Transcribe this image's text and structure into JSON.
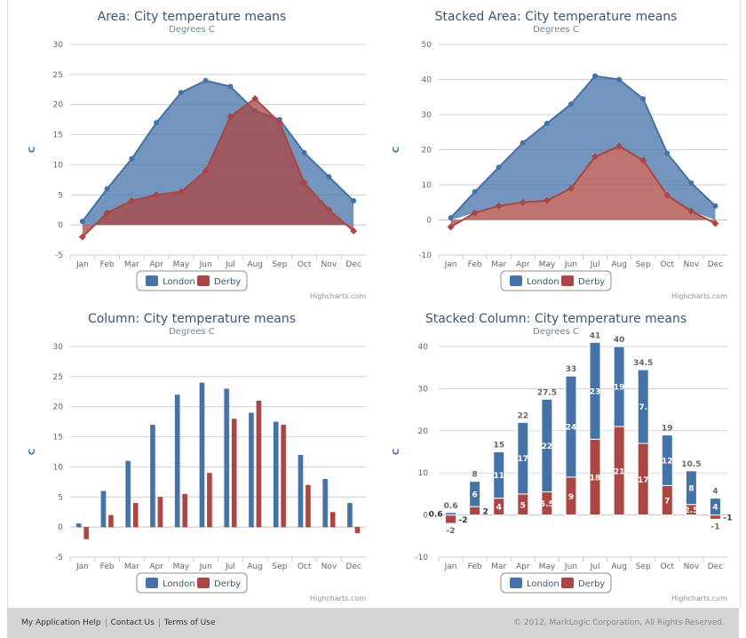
{
  "chart_data": [
    {
      "type": "area",
      "stacked": false,
      "title": "Area: City temperature means",
      "subtitle": "Degrees C",
      "ylabel": "C",
      "ylim": [
        -5,
        30
      ],
      "yticks": [
        -5,
        0,
        5,
        10,
        15,
        20,
        25,
        30
      ],
      "categories": [
        "Jan",
        "Feb",
        "Mar",
        "Apr",
        "May",
        "Jun",
        "Jul",
        "Aug",
        "Sep",
        "Oct",
        "Nov",
        "Dec"
      ],
      "series": [
        {
          "name": "London",
          "color": "#4572A7",
          "values": [
            0.6,
            6,
            11,
            17,
            22,
            24,
            23,
            19,
            17.5,
            12,
            8,
            4
          ]
        },
        {
          "name": "Derby",
          "color": "#AA4643",
          "values": [
            -2,
            2,
            4,
            5,
            5.5,
            9,
            18,
            21,
            17,
            7,
            2.5,
            -1
          ]
        }
      ],
      "credits": "Highcharts.com",
      "legend": "bottom-center"
    },
    {
      "type": "area",
      "stacked": true,
      "title": "Stacked Area: City temperature means",
      "subtitle": "Degrees C",
      "ylabel": "C",
      "ylim": [
        -10,
        50
      ],
      "yticks": [
        -10,
        0,
        10,
        20,
        30,
        40,
        50
      ],
      "categories": [
        "Jan",
        "Feb",
        "Mar",
        "Apr",
        "May",
        "Jun",
        "Jul",
        "Aug",
        "Sep",
        "Oct",
        "Nov",
        "Dec"
      ],
      "series": [
        {
          "name": "London",
          "color": "#4572A7",
          "values": [
            0.6,
            6,
            11,
            17,
            22,
            24,
            23,
            19,
            17.5,
            12,
            8,
            4
          ]
        },
        {
          "name": "Derby",
          "color": "#AA4643",
          "values": [
            -2,
            2,
            4,
            5,
            5.5,
            9,
            18,
            21,
            17,
            7,
            2.5,
            -1
          ]
        }
      ],
      "credits": "Highcharts.com",
      "legend": "bottom-center"
    },
    {
      "type": "bar",
      "stacked": false,
      "title": "Column: City temperature means",
      "subtitle": "Degrees C",
      "ylabel": "C",
      "ylim": [
        -5,
        30
      ],
      "yticks": [
        -5,
        0,
        5,
        10,
        15,
        20,
        25,
        30
      ],
      "categories": [
        "Jan",
        "Feb",
        "Mar",
        "Apr",
        "May",
        "Jun",
        "Jul",
        "Aug",
        "Sep",
        "Oct",
        "Nov",
        "Dec"
      ],
      "series": [
        {
          "name": "London",
          "color": "#4572A7",
          "values": [
            0.6,
            6,
            11,
            17,
            22,
            24,
            23,
            19,
            17.5,
            12,
            8,
            4
          ]
        },
        {
          "name": "Derby",
          "color": "#AA4643",
          "values": [
            -2,
            2,
            4,
            5,
            5.5,
            9,
            18,
            21,
            17,
            7,
            2.5,
            -1
          ]
        }
      ],
      "credits": "Highcharts.com",
      "legend": "bottom-center"
    },
    {
      "type": "bar",
      "stacked": true,
      "title": "Stacked Column: City temperature means",
      "subtitle": "Degrees C",
      "ylabel": "C",
      "ylim": [
        -10,
        40
      ],
      "yticks": [
        -10,
        0,
        10,
        20,
        30,
        40
      ],
      "categories": [
        "Jan",
        "Feb",
        "Mar",
        "Apr",
        "May",
        "Jun",
        "Jul",
        "Aug",
        "Sep",
        "Oct",
        "Nov",
        "Dec"
      ],
      "series": [
        {
          "name": "London",
          "color": "#4572A7",
          "values": [
            0.6,
            6,
            11,
            17,
            22,
            24,
            23,
            19,
            17.5,
            12,
            8,
            4
          ]
        },
        {
          "name": "Derby",
          "color": "#AA4643",
          "values": [
            -2,
            2,
            4,
            5,
            5.5,
            9,
            18,
            21,
            17,
            7,
            2.5,
            -1
          ]
        }
      ],
      "stack_totals": [
        "0.6",
        "8",
        "15",
        "22",
        "27.5",
        "33",
        "41",
        "40",
        "34.5",
        "19",
        "10.5",
        "4"
      ],
      "negative_totals": [
        "-2",
        "",
        "",
        "",
        "",
        "",
        "",
        "",
        "",
        "",
        "",
        "-1"
      ],
      "credits": "Highcharts.com",
      "legend": "bottom-center"
    }
  ],
  "footer": {
    "links": [
      "My Application Help",
      "Contact Us",
      "Terms of Use"
    ],
    "copyright": "© 2012, MarkLogic Corporation, All Rights Reserved."
  }
}
